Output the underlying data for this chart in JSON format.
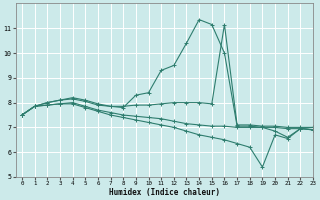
{
  "xlabel": "Humidex (Indice chaleur)",
  "bg_color": "#cceaea",
  "grid_color": "#ffffff",
  "line_color": "#2e7d6e",
  "xlim": [
    -0.5,
    23
  ],
  "ylim": [
    5,
    12
  ],
  "yticks": [
    5,
    6,
    7,
    8,
    9,
    10,
    11
  ],
  "xticks": [
    0,
    1,
    2,
    3,
    4,
    5,
    6,
    7,
    8,
    9,
    10,
    11,
    12,
    13,
    14,
    15,
    16,
    17,
    18,
    19,
    20,
    21,
    22,
    23
  ],
  "lines": [
    {
      "x": [
        0,
        1,
        2,
        3,
        4,
        5,
        6,
        7,
        8,
        9,
        10,
        11,
        12,
        13,
        14,
        15,
        16,
        17,
        18,
        19,
        20,
        21,
        22,
        23
      ],
      "y": [
        7.5,
        7.85,
        8.0,
        8.1,
        8.2,
        8.1,
        7.95,
        7.85,
        7.8,
        8.3,
        8.4,
        9.3,
        9.5,
        10.4,
        11.35,
        11.15,
        10.0,
        7.05,
        7.05,
        7.0,
        6.85,
        6.6,
        6.95,
        6.9
      ]
    },
    {
      "x": [
        0,
        1,
        2,
        3,
        4,
        5,
        6,
        7,
        8,
        9,
        10,
        11,
        12,
        13,
        14,
        15,
        16,
        17,
        18,
        19,
        20,
        21,
        22,
        23
      ],
      "y": [
        7.5,
        7.85,
        8.0,
        8.1,
        8.15,
        8.05,
        7.9,
        7.85,
        7.85,
        7.9,
        7.9,
        7.95,
        8.0,
        8.0,
        8.0,
        7.95,
        11.15,
        7.1,
        7.1,
        7.05,
        7.05,
        7.0,
        7.0,
        7.0
      ]
    },
    {
      "x": [
        0,
        1,
        2,
        3,
        4,
        5,
        6,
        7,
        8,
        9,
        10,
        11,
        12,
        13,
        14,
        15,
        16,
        17,
        18,
        19,
        20,
        21,
        22,
        23
      ],
      "y": [
        7.5,
        7.85,
        7.9,
        7.95,
        8.0,
        7.85,
        7.7,
        7.6,
        7.5,
        7.45,
        7.4,
        7.35,
        7.25,
        7.15,
        7.1,
        7.05,
        7.05,
        7.0,
        7.0,
        7.0,
        7.0,
        6.95,
        6.95,
        7.0
      ]
    },
    {
      "x": [
        0,
        1,
        2,
        3,
        4,
        5,
        6,
        7,
        8,
        9,
        10,
        11,
        12,
        13,
        14,
        15,
        16,
        17,
        18,
        19,
        20,
        21,
        22,
        23
      ],
      "y": [
        7.5,
        7.85,
        7.9,
        7.95,
        7.95,
        7.8,
        7.65,
        7.5,
        7.4,
        7.3,
        7.2,
        7.1,
        7.0,
        6.85,
        6.7,
        6.6,
        6.5,
        6.35,
        6.2,
        5.4,
        6.7,
        6.55,
        6.95,
        6.9
      ]
    }
  ]
}
